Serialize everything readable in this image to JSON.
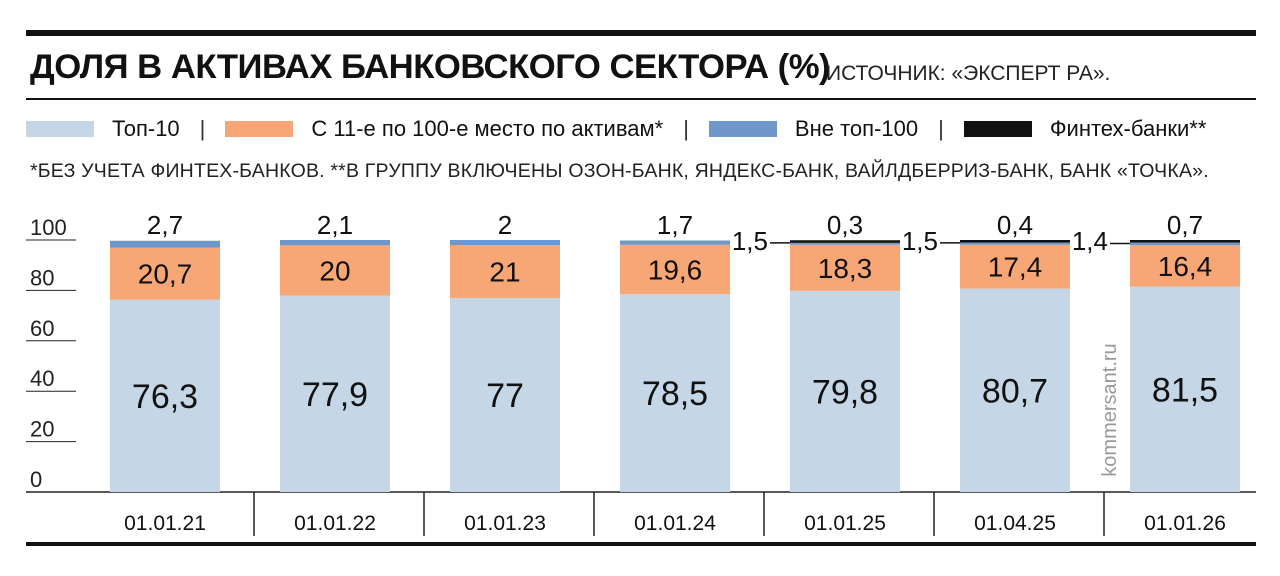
{
  "title": "ДОЛЯ В АКТИВАХ БАНКОВСКОГО СЕКТОРА (%)",
  "source": "ИСТОЧНИК: «ЭКСПЕРТ РА».",
  "footnote": "*БЕЗ УЧЕТА ФИНТЕХ-БАНКОВ.  **В ГРУППУ ВКЛЮЧЕНЫ ОЗОН-БАНК, ЯНДЕКС-БАНК, ВАЙЛДБЕРРИЗ-БАНК, БАНК «ТОЧКА».",
  "watermark": "kommersant.ru",
  "legend_separator": "|",
  "chart_data": {
    "type": "bar",
    "stacked": true,
    "categories": [
      "01.01.21",
      "01.01.22",
      "01.01.23",
      "01.01.24",
      "01.01.25",
      "01.04.25",
      "01.01.26"
    ],
    "series": [
      {
        "name": "Топ-10",
        "color": "#c5d6e6",
        "values": [
          76.3,
          77.9,
          77,
          78.5,
          79.8,
          80.7,
          81.5
        ],
        "labels": [
          "76,3",
          "77,9",
          "77",
          "78,5",
          "79,8",
          "80,7",
          "81,5"
        ]
      },
      {
        "name": "С 11-е по 100-е место по активам*",
        "color": "#f7a776",
        "values": [
          20.7,
          20,
          21,
          19.6,
          18.3,
          17.4,
          16.4
        ],
        "labels": [
          "20,7",
          "20",
          "21",
          "19,6",
          "18,3",
          "17,4",
          "16,4"
        ]
      },
      {
        "name": "Вне топ-100",
        "color": "#6f97cb",
        "values": [
          2.7,
          2.1,
          2,
          1.7,
          1.5,
          1.5,
          1.4
        ],
        "labels": [
          "2,7",
          "2,1",
          "2",
          "1,7",
          "1,5",
          "1,5",
          "1,4"
        ]
      },
      {
        "name": "Финтех-банки**",
        "color": "#111111",
        "values": [
          null,
          null,
          null,
          null,
          0.3,
          0.4,
          0.7
        ],
        "labels": [
          "",
          "",
          "",
          "",
          "0,3",
          "0,4",
          "0,7"
        ]
      }
    ],
    "y_ticks": [
      "0",
      "20",
      "40",
      "60",
      "80",
      "100"
    ],
    "ylim": [
      0,
      100
    ],
    "grid": false,
    "legend_position": "top"
  }
}
